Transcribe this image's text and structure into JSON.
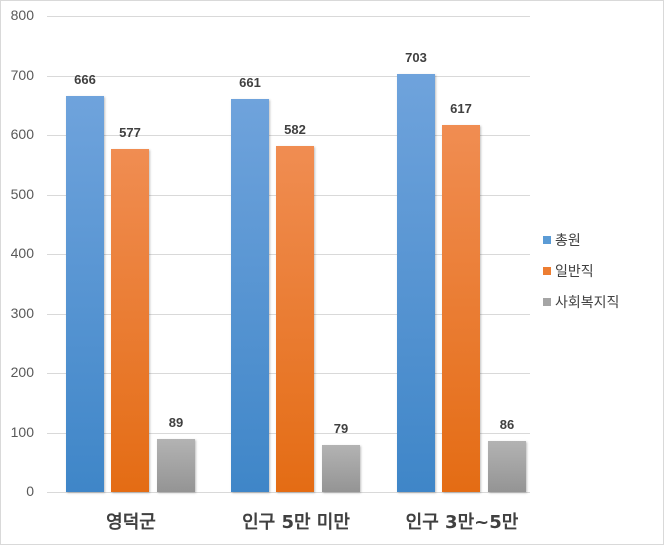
{
  "chart_data": {
    "type": "bar",
    "title": "",
    "xlabel": "",
    "ylabel": "",
    "ylim": [
      0,
      800
    ],
    "yticks": [
      0,
      100,
      200,
      300,
      400,
      500,
      600,
      700,
      800
    ],
    "grid": true,
    "legend_position": "right",
    "categories": [
      "영덕군",
      "인구 5만 미만",
      "인구 3만~5만"
    ],
    "series": [
      {
        "name": "총원",
        "color": "#5b9bd5",
        "values": [
          666,
          661,
          703
        ]
      },
      {
        "name": "일반직",
        "color": "#ed7d31",
        "values": [
          577,
          582,
          617
        ]
      },
      {
        "name": "사회복지직",
        "color": "#a5a5a5",
        "values": [
          89,
          79,
          86
        ]
      }
    ]
  },
  "axis": {
    "yticks": [
      "0",
      "100",
      "200",
      "300",
      "400",
      "500",
      "600",
      "700",
      "800"
    ]
  },
  "labels": {
    "categories": [
      "영덕군",
      "인구 5만 미만",
      "인구 3만~5만"
    ],
    "values": [
      [
        "666",
        "577",
        "89"
      ],
      [
        "661",
        "582",
        "79"
      ],
      [
        "703",
        "617",
        "86"
      ]
    ]
  },
  "legend": [
    "총원",
    "일반직",
    "사회복지직"
  ]
}
